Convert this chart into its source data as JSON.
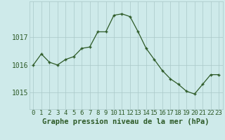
{
  "x": [
    0,
    1,
    2,
    3,
    4,
    5,
    6,
    7,
    8,
    9,
    10,
    11,
    12,
    13,
    14,
    15,
    16,
    17,
    18,
    19,
    20,
    21,
    22,
    23
  ],
  "y": [
    1016.0,
    1016.4,
    1016.1,
    1016.0,
    1016.2,
    1016.3,
    1016.6,
    1016.65,
    1017.2,
    1017.2,
    1017.8,
    1017.85,
    1017.75,
    1017.2,
    1016.6,
    1016.2,
    1015.8,
    1015.5,
    1015.3,
    1015.05,
    1014.95,
    1015.3,
    1015.65,
    1015.65
  ],
  "line_color": "#2d5a27",
  "marker_color": "#2d5a27",
  "bg_color": "#ceeaea",
  "grid_color": "#aac8c8",
  "xlabel": "Graphe pression niveau de la mer (hPa)",
  "xlabel_color": "#2d5a27",
  "tick_color": "#2d5a27",
  "ytick_labels": [
    "1015",
    "1016",
    "1017"
  ],
  "ytick_vals": [
    1015,
    1016,
    1017
  ],
  "ylim": [
    1014.4,
    1018.3
  ],
  "xlim": [
    -0.5,
    23.5
  ],
  "font_size_xlabel": 7.5,
  "font_size_ytick": 7,
  "font_size_xtick": 6.5
}
